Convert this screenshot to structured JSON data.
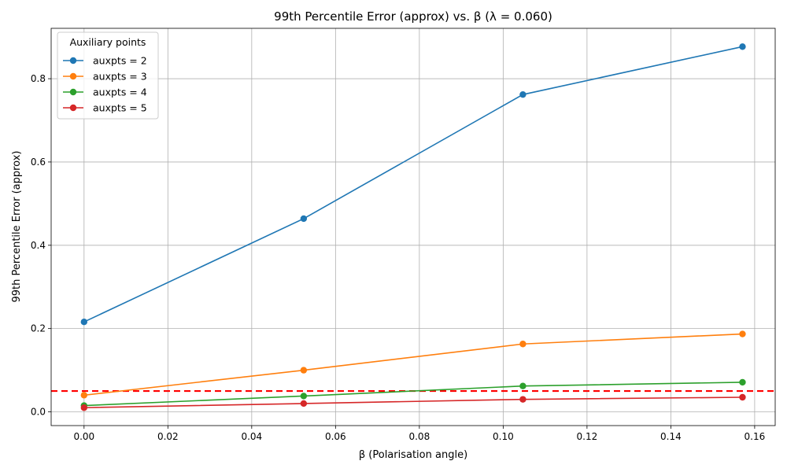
{
  "chart_data": {
    "type": "line",
    "title": "99th Percentile Error (approx) vs. β (λ = 0.060)",
    "xlabel": "β (Polarisation angle)",
    "ylabel": "99th Percentile Error (approx)",
    "xlim": [
      -0.00785,
      0.1649
    ],
    "ylim": [
      -0.033,
      0.921
    ],
    "xticks": [
      0.0,
      0.02,
      0.04,
      0.06,
      0.08,
      0.1,
      0.12,
      0.14,
      0.16
    ],
    "xtick_labels": [
      "0.00",
      "0.02",
      "0.04",
      "0.06",
      "0.08",
      "0.10",
      "0.12",
      "0.14",
      "0.16"
    ],
    "yticks": [
      0.0,
      0.2,
      0.4,
      0.6,
      0.8
    ],
    "ytick_labels": [
      "0.0",
      "0.2",
      "0.4",
      "0.6",
      "0.8"
    ],
    "grid": true,
    "legend": {
      "title": "Auxiliary points",
      "location": "top-left"
    },
    "x": [
      0.0,
      0.0524,
      0.1047,
      0.1571
    ],
    "series": [
      {
        "name": "auxpts = 2",
        "color": "#1f77b4",
        "values": [
          0.216,
          0.464,
          0.762,
          0.877
        ]
      },
      {
        "name": "auxpts = 3",
        "color": "#ff7f0e",
        "values": [
          0.04,
          0.1,
          0.163,
          0.187
        ]
      },
      {
        "name": "auxpts = 4",
        "color": "#2ca02c",
        "values": [
          0.015,
          0.038,
          0.062,
          0.071
        ]
      },
      {
        "name": "auxpts = 5",
        "color": "#d62728",
        "values": [
          0.01,
          0.02,
          0.03,
          0.035
        ]
      }
    ],
    "reference_line": {
      "orientation": "horizontal",
      "y": 0.05,
      "style": "dashed",
      "color": "#ff0000"
    }
  }
}
